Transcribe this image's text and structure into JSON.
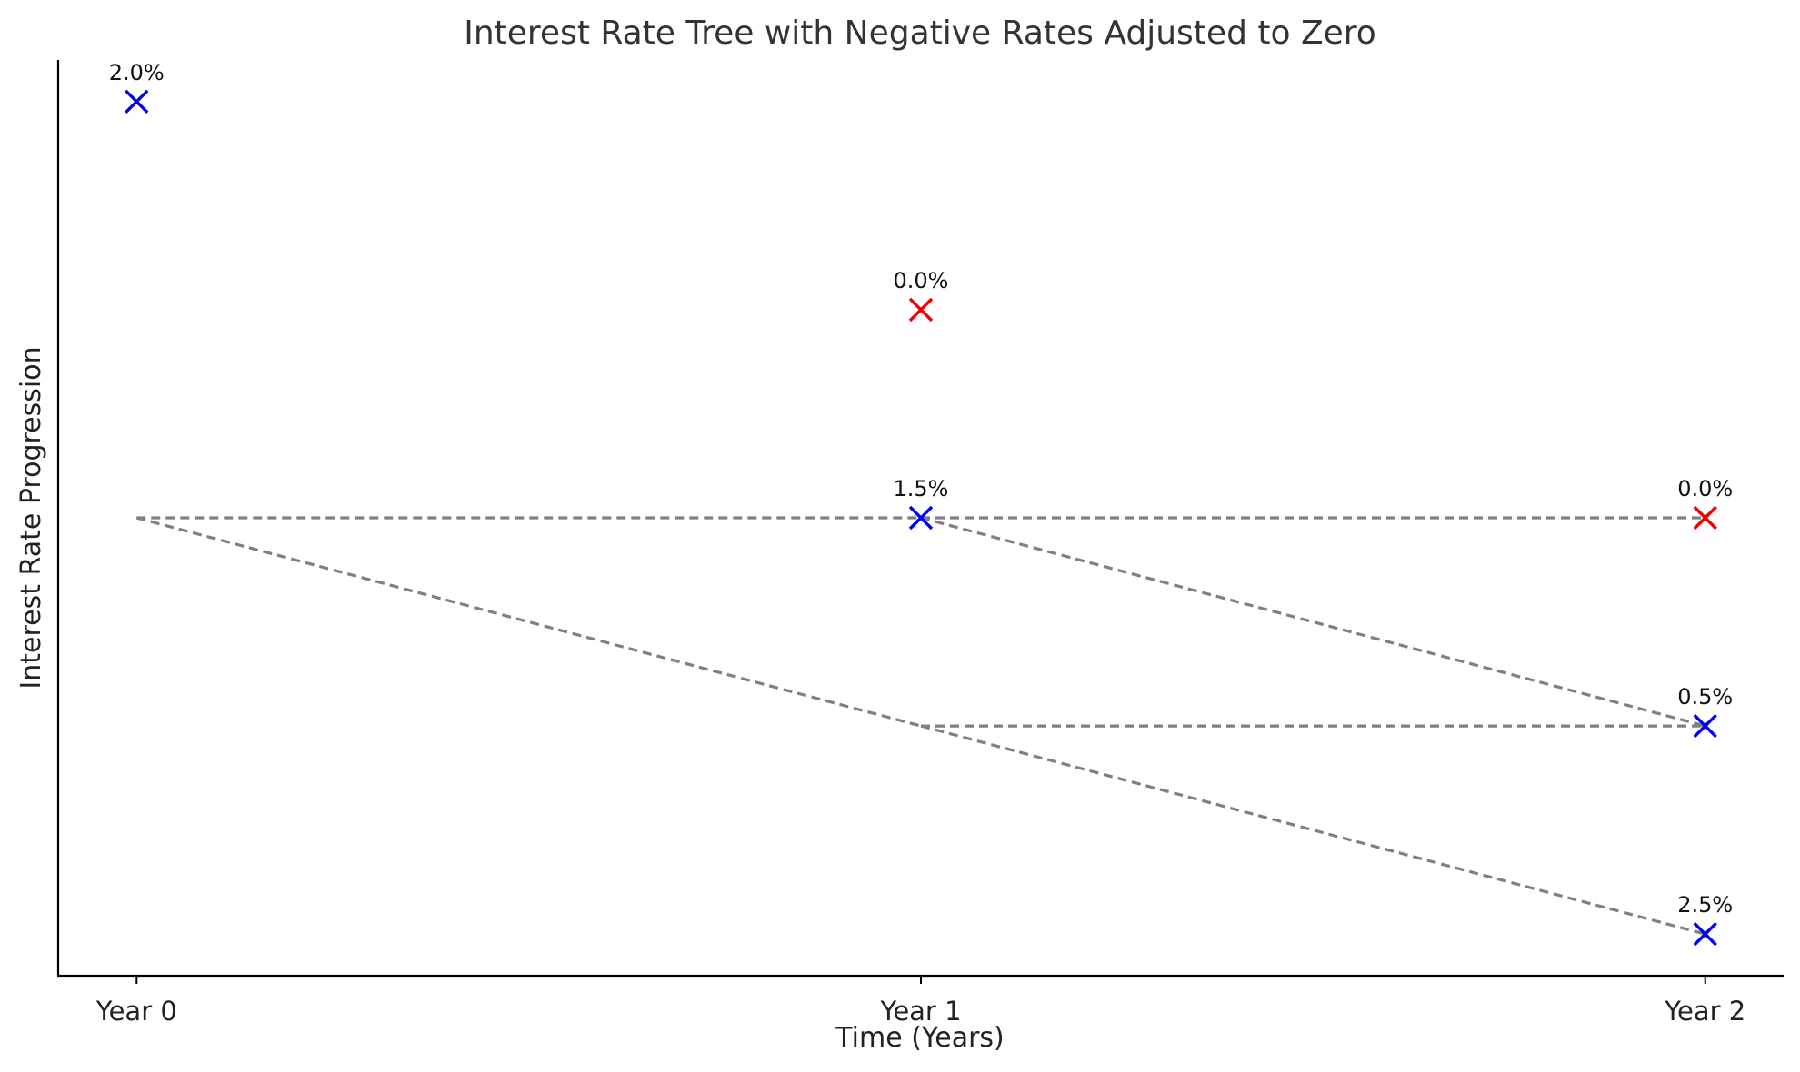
{
  "chart_data": {
    "type": "scatter",
    "title": "Interest Rate Tree with Negative Rates Adjusted to Zero",
    "xlabel": "Time (Years)",
    "ylabel": "Interest Rate Progression",
    "x_categories": [
      "Year 0",
      "Year 1",
      "Year 2"
    ],
    "xlim": [
      -0.1,
      2.1
    ],
    "ylim": [
      -0.4,
      4.0
    ],
    "grid": false,
    "colors": {
      "positive": "#0000ee",
      "adjusted": "#ee0000",
      "edge": "#808080"
    },
    "nodes": [
      {
        "id": "n0",
        "x": 0,
        "y": 3.8,
        "label": "2.0%",
        "adjusted": false
      },
      {
        "id": "n1a",
        "x": 1,
        "y": 2.8,
        "label": "0.0%",
        "adjusted": true
      },
      {
        "id": "n1b",
        "x": 1,
        "y": 1.8,
        "label": "1.5%",
        "adjusted": false
      },
      {
        "id": "n2a",
        "x": 2,
        "y": 1.8,
        "label": "0.0%",
        "adjusted": true
      },
      {
        "id": "n2b",
        "x": 2,
        "y": 0.8,
        "label": "0.5%",
        "adjusted": false
      },
      {
        "id": "n2c",
        "x": 2,
        "y": -0.2,
        "label": "2.5%",
        "adjusted": false
      }
    ],
    "edges": [
      {
        "from": [
          0,
          1.8
        ],
        "to": [
          1,
          1.8
        ]
      },
      {
        "from": [
          0,
          1.8
        ],
        "to": [
          1,
          0.8
        ]
      },
      {
        "from": [
          1,
          1.8
        ],
        "to": [
          2,
          1.8
        ]
      },
      {
        "from": [
          1,
          1.8
        ],
        "to": [
          2,
          0.8
        ]
      },
      {
        "from": [
          1,
          0.8
        ],
        "to": [
          2,
          0.8
        ]
      },
      {
        "from": [
          1,
          0.8
        ],
        "to": [
          2,
          -0.2
        ]
      }
    ]
  }
}
